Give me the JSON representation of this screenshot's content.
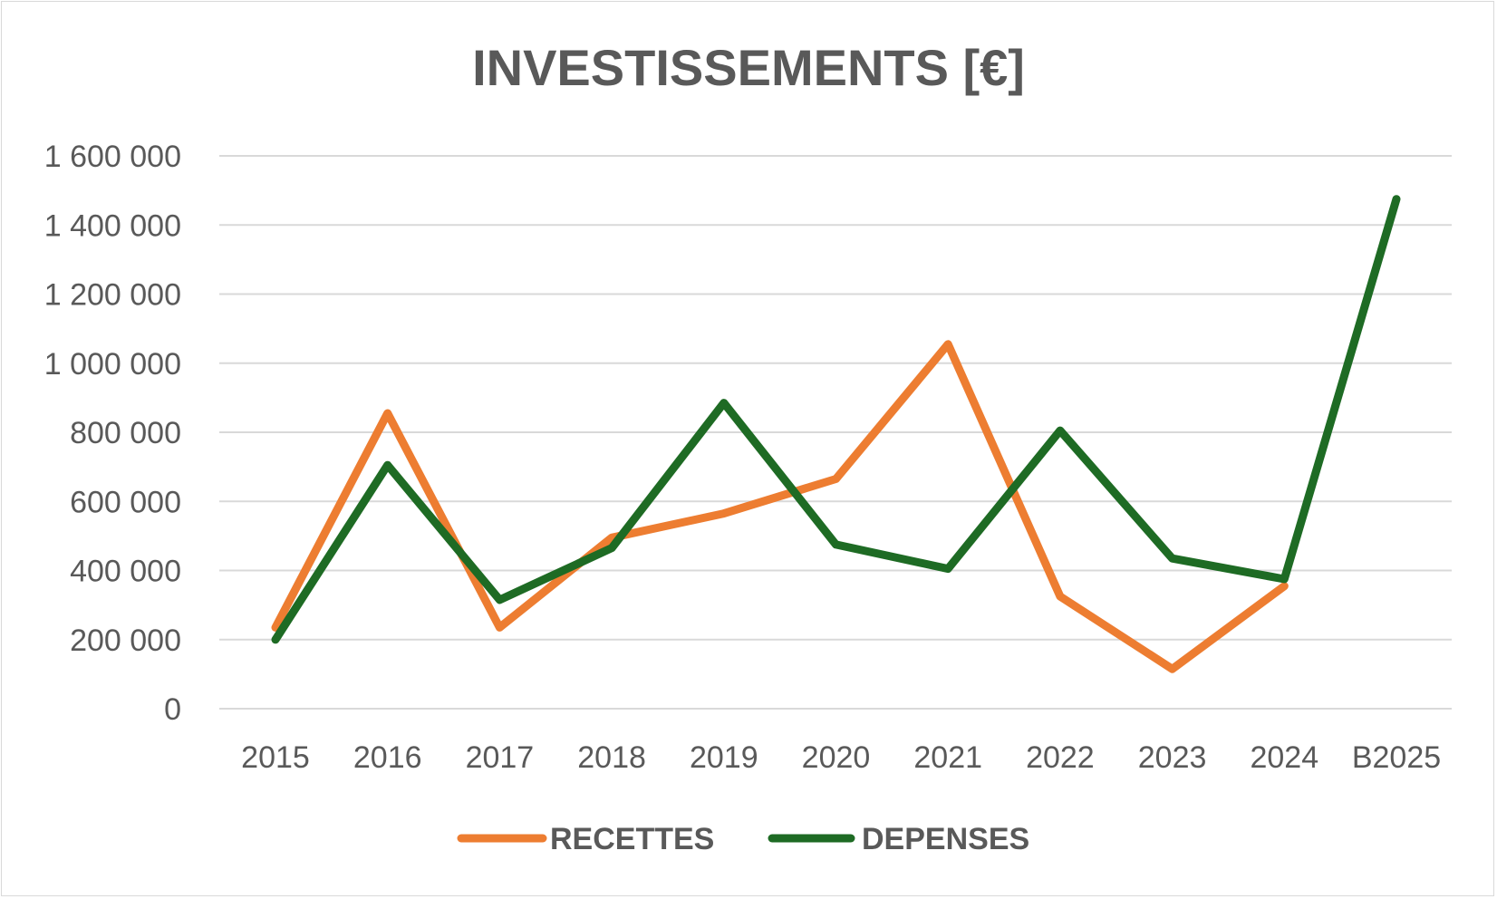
{
  "chart_data": {
    "type": "line",
    "title": "INVESTISSEMENTS [€]",
    "xlabel": "",
    "ylabel": "",
    "categories": [
      "2015",
      "2016",
      "2017",
      "2018",
      "2019",
      "2020",
      "2021",
      "2022",
      "2023",
      "2024",
      "B2025"
    ],
    "ylim": [
      0,
      1600000
    ],
    "yticks": [
      0,
      200000,
      400000,
      600000,
      800000,
      1000000,
      1200000,
      1400000,
      1600000
    ],
    "ytick_labels": [
      "0",
      "200 000",
      "400 000",
      "600 000",
      "800 000",
      "1 000 000",
      "1 200 000",
      "1 400 000",
      "1 600 000"
    ],
    "grid": true,
    "legend_position": "bottom",
    "series": [
      {
        "name": "RECETTES",
        "color": "#ed7d31",
        "values": [
          235000,
          855000,
          235000,
          495000,
          565000,
          665000,
          1055000,
          325000,
          115000,
          355000,
          null
        ]
      },
      {
        "name": "DEPENSES",
        "color": "#1e6b24",
        "values": [
          200000,
          705000,
          315000,
          465000,
          885000,
          475000,
          405000,
          805000,
          435000,
          375000,
          1475000
        ]
      }
    ]
  }
}
